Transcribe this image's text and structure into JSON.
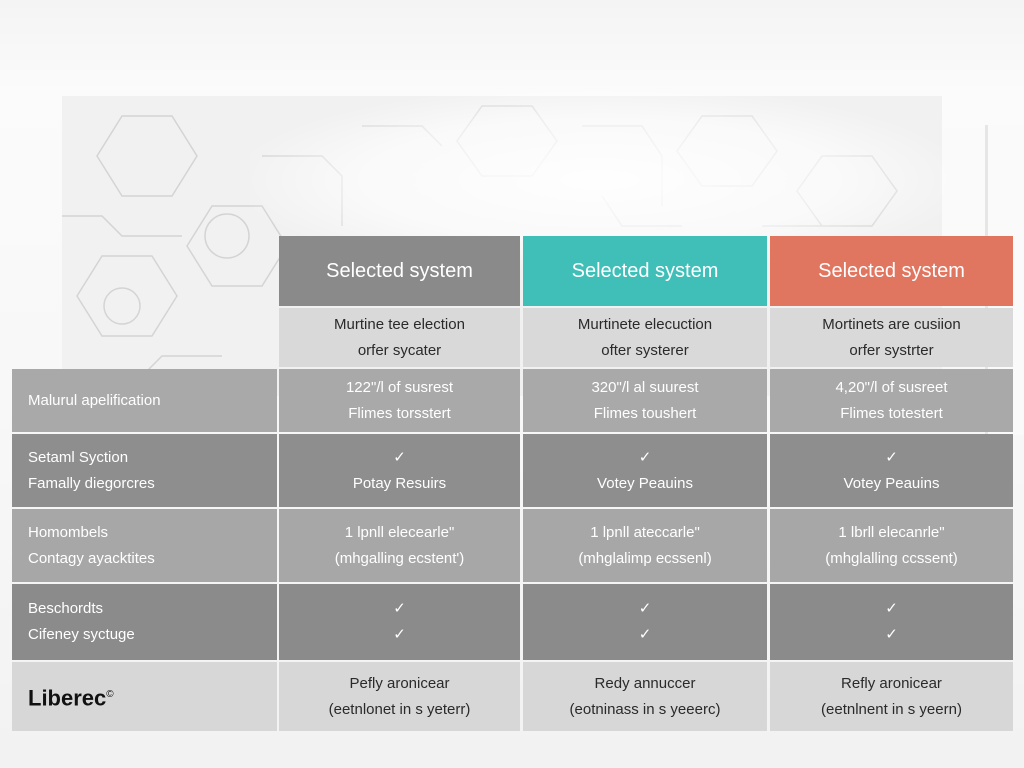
{
  "colors": {
    "header_gray": "#8a8a8a",
    "header_teal": "#3fbfb8",
    "header_coral": "#e07560"
  },
  "columns": [
    {
      "header": "Selected system",
      "subheader": [
        "Murtine tee election",
        "orfer sycater"
      ]
    },
    {
      "header": "Selected system",
      "subheader": [
        "Murtinete elecuction",
        "ofter systerer"
      ]
    },
    {
      "header": "Selected system",
      "subheader": [
        "Mortinets are cusiion",
        "orfer systrter"
      ]
    }
  ],
  "rows": [
    {
      "labels": [
        "Malurul apelification"
      ],
      "cells": [
        [
          "122\"/l of susrest",
          "Flimes torsstert"
        ],
        [
          "320\"/l al suurest",
          "Flimes toushert"
        ],
        [
          "4,20\"/l of susreet",
          "Flimes totestert"
        ]
      ]
    },
    {
      "labels": [
        "Setaml Syction",
        "Famally diegorcres"
      ],
      "cells": [
        [
          "✓",
          "Potay Resuirs"
        ],
        [
          "✓",
          "Votey Peauins"
        ],
        [
          "✓",
          "Votey Peauins"
        ]
      ]
    },
    {
      "labels": [
        "Homombels",
        "Contagy ayacktites"
      ],
      "cells": [
        [
          "1 lpnll elecearle\"",
          "(mhgalling ecstent')"
        ],
        [
          "1 lpnll ateccarle\"",
          "(mhglalimp ecssenl)"
        ],
        [
          "1 lbrll elecanrle\"",
          "(mhglalling ccssent)"
        ]
      ]
    },
    {
      "labels": [
        "Beschordts",
        "Cifeney syctuge"
      ],
      "cells": [
        [
          "✓",
          "✓"
        ],
        [
          "✓",
          "✓"
        ],
        [
          "✓",
          "✓"
        ]
      ]
    },
    {
      "labels": [],
      "cells": [
        [
          "Pefly aronicear",
          "(eetnlonet in s yeterr)"
        ],
        [
          "Redy annuccer",
          "(eotninass in s yeeerc)"
        ],
        [
          "Refly aronicear",
          "(eetnlnent in s yeern)"
        ]
      ]
    }
  ],
  "brand": {
    "name": "Liberec",
    "mark": "©"
  }
}
